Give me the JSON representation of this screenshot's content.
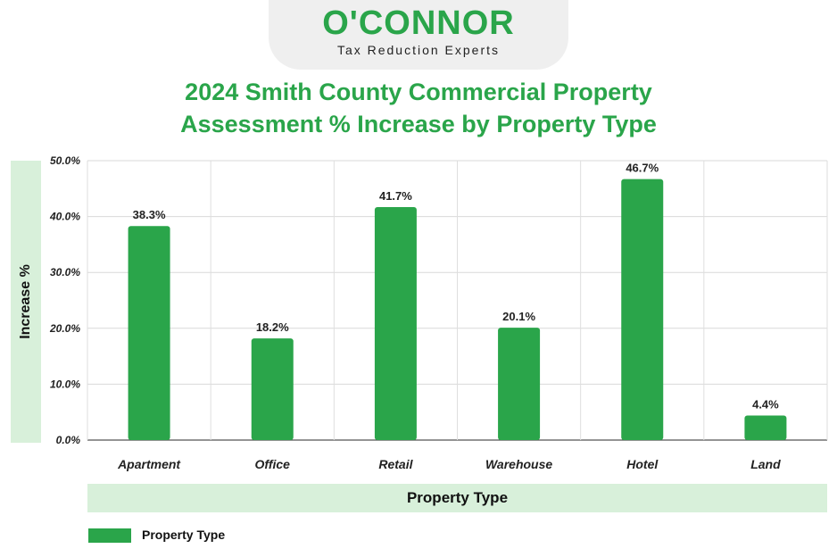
{
  "logo": {
    "name": "O'CONNOR",
    "tagline": "Tax Reduction Experts"
  },
  "colors": {
    "brand_green": "#2aa54a",
    "band_green": "#d8f0da"
  },
  "chart_data": {
    "type": "bar",
    "title_line1": "2024 Smith County Commercial Property",
    "title_line2": "Assessment % Increase by Property Type",
    "xlabel": "Property Type",
    "ylabel": "Increase %",
    "categories": [
      "Apartment",
      "Office",
      "Retail",
      "Warehouse",
      "Hotel",
      "Land"
    ],
    "values": [
      38.3,
      18.2,
      41.7,
      20.1,
      46.7,
      4.4
    ],
    "value_labels": [
      "38.3%",
      "18.2%",
      "41.7%",
      "20.1%",
      "46.7%",
      "4.4%"
    ],
    "yticks": [
      "0.0%",
      "10.0%",
      "20.0%",
      "30.0%",
      "40.0%",
      "50.0%"
    ],
    "ylim": [
      0,
      50
    ],
    "grid": true,
    "legend": {
      "position": "bottom-left",
      "entries": [
        "Property Type"
      ]
    }
  }
}
